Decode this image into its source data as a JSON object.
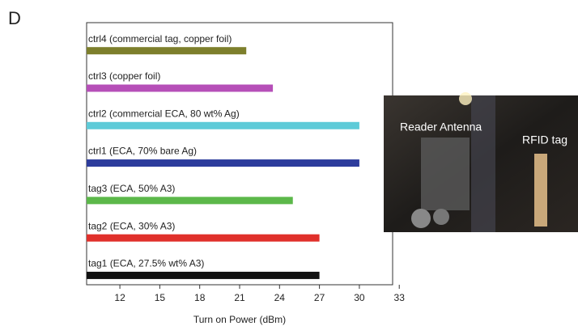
{
  "panel_label": "D",
  "chart_data": {
    "type": "hbar",
    "categories": [
      "ctrl4 (commercial tag, copper foil)",
      "ctrl3 (copper foil)",
      "ctrl2 (commercial ECA, 80 wt% Ag)",
      "ctrl1 (ECA, 70% bare Ag)",
      "tag3 (ECA, 50% A3)",
      "tag2 (ECA, 30% A3)",
      "tag1 (ECA, 27.5% wt% A3)"
    ],
    "values": [
      21.5,
      23.5,
      30,
      30,
      25,
      27,
      27
    ],
    "colors": [
      "#7d7f2c",
      "#b64fb8",
      "#5ecbd8",
      "#2d3c9c",
      "#5cb84a",
      "#e0302b",
      "#111111"
    ],
    "x_label": "Turn on Power (dBm)",
    "xlim": [
      9.5,
      32.5
    ],
    "xticks": [
      12,
      15,
      18,
      21,
      24,
      27,
      30,
      33
    ]
  },
  "inset": {
    "labels": [
      "Reader Antenna",
      "RFID tag"
    ]
  }
}
